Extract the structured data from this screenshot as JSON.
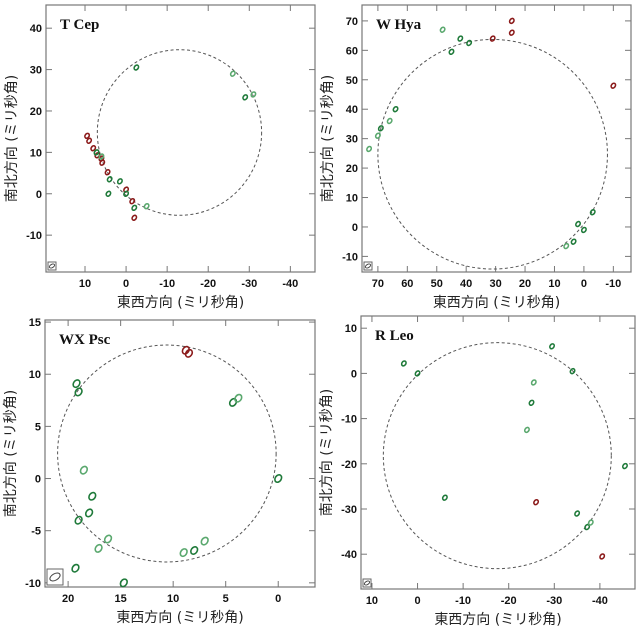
{
  "colors": {
    "redshifted": "#8b1a1a",
    "blueshifted": "#1f7a3a",
    "faint": "#5aa86e",
    "circle": "#555555"
  },
  "chart_data": [
    {
      "type": "scatter",
      "title": "T Cep",
      "xlabel": "東西方向 (ミリ秒角)",
      "ylabel": "南北方向 (ミリ秒角)",
      "xlim": [
        19.5,
        -46
      ],
      "ylim": [
        -18.9,
        45.6
      ],
      "xticks": [
        10,
        0,
        -10,
        -20,
        -30,
        -40
      ],
      "yticks": [
        40,
        30,
        20,
        10,
        0,
        -10
      ],
      "ring": {
        "cx": -13,
        "cy": 14.8,
        "r": 20
      },
      "points": [
        {
          "x": 9.5,
          "y": 14,
          "c": "redshifted"
        },
        {
          "x": 9,
          "y": 12.8,
          "c": "redshifted"
        },
        {
          "x": 8,
          "y": 11,
          "c": "redshifted"
        },
        {
          "x": 7,
          "y": 9.3,
          "c": "redshifted"
        },
        {
          "x": 6,
          "y": 8.5,
          "c": "redshifted"
        },
        {
          "x": 4.5,
          "y": 5.2,
          "c": "redshifted"
        },
        {
          "x": 0,
          "y": 1,
          "c": "redshifted"
        },
        {
          "x": -1.5,
          "y": -1.8,
          "c": "redshifted"
        },
        {
          "x": -2,
          "y": -5.8,
          "c": "redshifted"
        },
        {
          "x": 5.8,
          "y": 7.5,
          "c": "redshifted"
        },
        {
          "x": 7.2,
          "y": 10,
          "c": "blueshifted"
        },
        {
          "x": 6,
          "y": 9,
          "c": "faint"
        },
        {
          "x": 0,
          "y": 0,
          "c": "blueshifted"
        },
        {
          "x": 4,
          "y": 3.5,
          "c": "blueshifted"
        },
        {
          "x": 1.5,
          "y": 3,
          "c": "blueshifted"
        },
        {
          "x": 4.3,
          "y": 0,
          "c": "blueshifted"
        },
        {
          "x": -2,
          "y": -3.4,
          "c": "blueshifted"
        },
        {
          "x": -5,
          "y": -3,
          "c": "faint"
        },
        {
          "x": -26,
          "y": 29,
          "c": "faint"
        },
        {
          "x": -29,
          "y": 23.3,
          "c": "blueshifted"
        },
        {
          "x": -31,
          "y": 24,
          "c": "faint"
        },
        {
          "x": -2.5,
          "y": 30.5,
          "c": "blueshifted"
        }
      ]
    },
    {
      "type": "scatter",
      "title": "W Hya",
      "xlabel": "東西方向 (ミリ秒角)",
      "ylabel": "南北方向 (ミリ秒角)",
      "xlim": [
        75.4,
        -16
      ],
      "ylim": [
        -15.3,
        75.4
      ],
      "xticks": [
        70,
        60,
        50,
        40,
        30,
        20,
        10,
        0,
        -10
      ],
      "yticks": [
        70,
        60,
        50,
        40,
        30,
        20,
        10,
        0,
        -10
      ],
      "ring": {
        "cx": 31,
        "cy": 24.7,
        "r": 39
      },
      "points": [
        {
          "x": 31,
          "y": 64,
          "c": "redshifted"
        },
        {
          "x": 24.5,
          "y": 66,
          "c": "redshifted"
        },
        {
          "x": 24.5,
          "y": 70,
          "c": "redshifted"
        },
        {
          "x": -10,
          "y": 48,
          "c": "redshifted"
        },
        {
          "x": 39,
          "y": 62.5,
          "c": "blueshifted"
        },
        {
          "x": 42,
          "y": 64,
          "c": "blueshifted"
        },
        {
          "x": 45,
          "y": 59.5,
          "c": "blueshifted"
        },
        {
          "x": 48,
          "y": 67,
          "c": "faint"
        },
        {
          "x": 64,
          "y": 40,
          "c": "blueshifted"
        },
        {
          "x": 66,
          "y": 36,
          "c": "faint"
        },
        {
          "x": 69,
          "y": 33.5,
          "c": "blueshifted"
        },
        {
          "x": 70,
          "y": 31,
          "c": "faint"
        },
        {
          "x": 73,
          "y": 26.5,
          "c": "faint"
        },
        {
          "x": 2,
          "y": 1,
          "c": "blueshifted"
        },
        {
          "x": 0,
          "y": -1,
          "c": "blueshifted"
        },
        {
          "x": -3,
          "y": 5,
          "c": "blueshifted"
        },
        {
          "x": 3.5,
          "y": -5,
          "c": "blueshifted"
        },
        {
          "x": 6,
          "y": -6.5,
          "c": "faint"
        }
      ]
    },
    {
      "type": "scatter",
      "title": "WX Psc",
      "xlabel": "東西方向 (ミリ秒角)",
      "ylabel": "南北方向 (ミリ秒角)",
      "xlim": [
        22.2,
        -3.5
      ],
      "ylim": [
        -10.4,
        15.2
      ],
      "xticks": [
        20,
        15,
        10,
        5,
        0
      ],
      "yticks": [
        15,
        10,
        5,
        0,
        -5,
        -10
      ],
      "ring": {
        "cx": 10.6,
        "cy": 2.4,
        "r": 10.4
      },
      "points": [
        {
          "x": 8.8,
          "y": 12.3,
          "c": "redshifted"
        },
        {
          "x": 8.5,
          "y": 12,
          "c": "redshifted"
        },
        {
          "x": 19.2,
          "y": 9.1,
          "c": "blueshifted"
        },
        {
          "x": 19,
          "y": 8.3,
          "c": "blueshifted"
        },
        {
          "x": 4.3,
          "y": 7.3,
          "c": "blueshifted"
        },
        {
          "x": 3.8,
          "y": 7.7,
          "c": "faint"
        },
        {
          "x": 0,
          "y": 0,
          "c": "blueshifted"
        },
        {
          "x": 18.5,
          "y": 0.8,
          "c": "faint"
        },
        {
          "x": 17.7,
          "y": -1.7,
          "c": "blueshifted"
        },
        {
          "x": 18,
          "y": -3.3,
          "c": "blueshifted"
        },
        {
          "x": 19,
          "y": -4,
          "c": "blueshifted"
        },
        {
          "x": 16.2,
          "y": -5.8,
          "c": "faint"
        },
        {
          "x": 17.1,
          "y": -6.7,
          "c": "faint"
        },
        {
          "x": 7,
          "y": -6,
          "c": "faint"
        },
        {
          "x": 9,
          "y": -7.1,
          "c": "faint"
        },
        {
          "x": 8,
          "y": -6.9,
          "c": "blueshifted"
        },
        {
          "x": 19.3,
          "y": -8.6,
          "c": "blueshifted"
        },
        {
          "x": 14.7,
          "y": -10,
          "c": "blueshifted"
        }
      ]
    },
    {
      "type": "scatter",
      "title": "R Leo",
      "xlabel": "東西方向 (ミリ秒角)",
      "ylabel": "南北方向 (ミリ秒角)",
      "xlim": [
        12.4,
        -47.7
      ],
      "ylim": [
        -47.7,
        12.7
      ],
      "xticks": [
        10,
        0,
        -10,
        -20,
        -30,
        -40
      ],
      "yticks": [
        10,
        0,
        -10,
        -20,
        -30,
        -40
      ],
      "ring": {
        "cx": -17.5,
        "cy": -18.2,
        "r": 25
      },
      "points": [
        {
          "x": 3,
          "y": 2.2,
          "c": "blueshifted"
        },
        {
          "x": 0,
          "y": 0,
          "c": "blueshifted"
        },
        {
          "x": -29.5,
          "y": 6,
          "c": "blueshifted"
        },
        {
          "x": -34,
          "y": 0.5,
          "c": "blueshifted"
        },
        {
          "x": -25.5,
          "y": -2,
          "c": "faint"
        },
        {
          "x": -25,
          "y": -6.5,
          "c": "blueshifted"
        },
        {
          "x": -24,
          "y": -12.5,
          "c": "faint"
        },
        {
          "x": -45.5,
          "y": -20.5,
          "c": "blueshifted"
        },
        {
          "x": -6,
          "y": -27.5,
          "c": "blueshifted"
        },
        {
          "x": -35,
          "y": -31,
          "c": "blueshifted"
        },
        {
          "x": -37.2,
          "y": -34,
          "c": "blueshifted"
        },
        {
          "x": -38,
          "y": -33,
          "c": "faint"
        },
        {
          "x": -26,
          "y": -28.5,
          "c": "redshifted"
        },
        {
          "x": -40.5,
          "y": -40.5,
          "c": "redshifted"
        }
      ]
    }
  ]
}
